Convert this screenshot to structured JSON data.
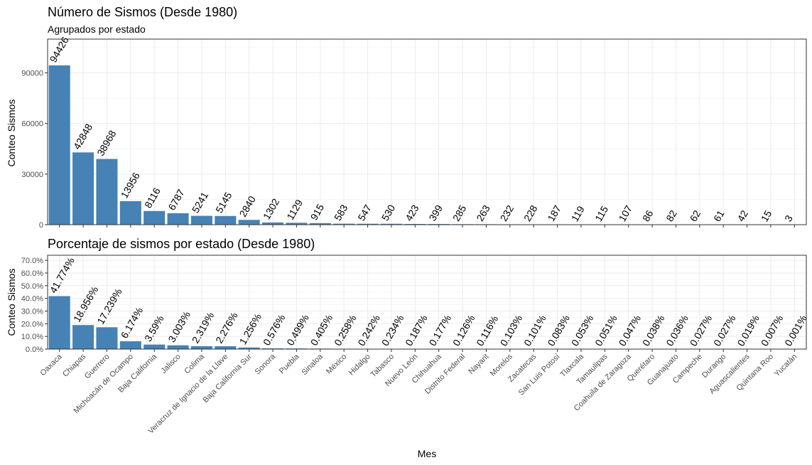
{
  "colors": {
    "bar": "#4682B4"
  },
  "chart_data": [
    {
      "type": "bar",
      "title": "Número de Sismos (Desde 1980)",
      "subtitle": "Agrupados por estado",
      "xlabel": "",
      "ylabel": "Conteo Sismos",
      "ylim": [
        0,
        110000
      ],
      "yticks": [
        "0",
        "30000",
        "60000",
        "90000"
      ],
      "ytick_values": [
        0,
        30000,
        60000,
        90000
      ],
      "categories": [
        "Oaxaca",
        "Chiapas",
        "Guerrero",
        "Michoacán de Ocampo",
        "Baja California",
        "Jalisco",
        "Colima",
        "Veracruz de Ignacio de la Llave",
        "Baja California Sur",
        "Sonora",
        "Puebla",
        "Sinaloa",
        "México",
        "Hidalgo",
        "Tabasco",
        "Nuevo León",
        "Chihuahua",
        "Distrito Federal",
        "Nayarit",
        "Morelos",
        "Zacatecas",
        "San Luis Potosí",
        "Tlaxcala",
        "Tamaulipas",
        "Coahuila de Zaragoza",
        "Querétaro",
        "Guanajuato",
        "Campeche",
        "Durango",
        "Aguascalientes",
        "Quintana Roo",
        "Yucatán"
      ],
      "values": [
        94426,
        42848,
        38968,
        13956,
        8116,
        6787,
        5241,
        5145,
        2840,
        1302,
        1129,
        915,
        583,
        547,
        530,
        423,
        399,
        285,
        263,
        232,
        228,
        187,
        119,
        115,
        107,
        86,
        82,
        62,
        61,
        42,
        15,
        3
      ],
      "labels": [
        "94426",
        "42848",
        "38968",
        "13956",
        "8116",
        "6787",
        "5241",
        "5145",
        "2840",
        "1302",
        "1129",
        "915",
        "583",
        "547",
        "530",
        "423",
        "399",
        "285",
        "263",
        "232",
        "228",
        "187",
        "119",
        "115",
        "107",
        "86",
        "82",
        "62",
        "61",
        "42",
        "15",
        "3"
      ],
      "grid": true
    },
    {
      "type": "bar",
      "title": "Porcentaje de sismos por estado (Desde 1980)",
      "xlabel": "Mes",
      "ylabel": "Conteo Sismos",
      "ylim": [
        0,
        0.74
      ],
      "yticks": [
        "0.0%",
        "10.0%",
        "20.0%",
        "30.0%",
        "40.0%",
        "50.0%",
        "60.0%",
        "70.0%"
      ],
      "ytick_values": [
        0,
        0.1,
        0.2,
        0.3,
        0.4,
        0.5,
        0.6,
        0.7
      ],
      "categories": [
        "Oaxaca",
        "Chiapas",
        "Guerrero",
        "Michoacán de Ocampo",
        "Baja California",
        "Jalisco",
        "Colima",
        "Veracruz de Ignacio de la Llave",
        "Baja California Sur",
        "Sonora",
        "Puebla",
        "Sinaloa",
        "México",
        "Hidalgo",
        "Tabasco",
        "Nuevo León",
        "Chihuahua",
        "Distrito Federal",
        "Nayarit",
        "Morelos",
        "Zacatecas",
        "San Luis Potosí",
        "Tlaxcala",
        "Tamaulipas",
        "Coahuila de Zaragoza",
        "Querétaro",
        "Guanajuato",
        "Campeche",
        "Durango",
        "Aguascalientes",
        "Quintana Roo",
        "Yucatán"
      ],
      "values": [
        0.41774,
        0.18956,
        0.17239,
        0.06174,
        0.0359,
        0.03003,
        0.02319,
        0.02276,
        0.01256,
        0.00576,
        0.00499,
        0.00405,
        0.00258,
        0.00242,
        0.00234,
        0.00187,
        0.00177,
        0.00126,
        0.00116,
        0.00103,
        0.00101,
        0.00083,
        0.00053,
        0.00051,
        0.00047,
        0.00038,
        0.00036,
        0.00027,
        0.00027,
        0.00019,
        7e-05,
        1e-05
      ],
      "labels": [
        "41.774%",
        "18.956%",
        "17.239%",
        "6.174%",
        "3.59%",
        "3.003%",
        "2.319%",
        "2.276%",
        "1.256%",
        "0.576%",
        "0.499%",
        "0.405%",
        "0.258%",
        "0.242%",
        "0.234%",
        "0.187%",
        "0.177%",
        "0.126%",
        "0.116%",
        "0.103%",
        "0.101%",
        "0.083%",
        "0.053%",
        "0.051%",
        "0.047%",
        "0.038%",
        "0.036%",
        "0.027%",
        "0.027%",
        "0.019%",
        "0.007%",
        "0.001%"
      ],
      "grid": true
    }
  ]
}
